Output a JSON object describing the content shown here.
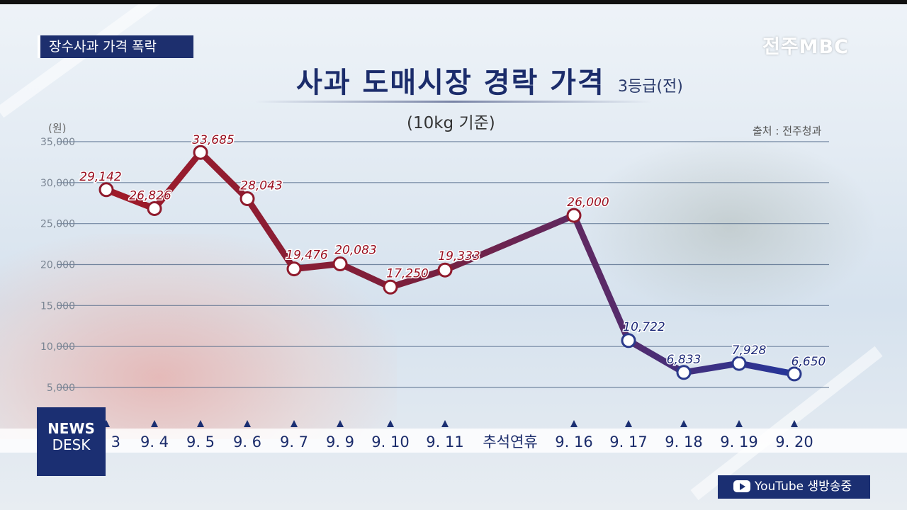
{
  "tag_label": "장수사과 가격 폭락",
  "logo_text": "전주MBC",
  "title": "사과 도매시장 경락 가격",
  "title_suffix": "3등급(전)",
  "subtitle": "(10kg 기준)",
  "source": "출처 : 전주청과",
  "newsdesk": {
    "line1": "NEWS",
    "line2": "DESK"
  },
  "youtube_label": "YouTube 생방송중",
  "colors": {
    "high": "#8f1a2c",
    "low": "#2b3a8c",
    "navy": "#1b2f72"
  },
  "chart_data": {
    "type": "line",
    "title": "사과 도매시장 경락 가격",
    "ylabel": "(원)",
    "ylim": [
      0,
      35000
    ],
    "yticks": [
      5000,
      10000,
      15000,
      20000,
      25000,
      30000,
      35000
    ],
    "ytick_labels": [
      "5,000",
      "10,000",
      "15,000",
      "20,000",
      "25,000",
      "30,000",
      "35,000"
    ],
    "grid": true,
    "categories": [
      "9. 3",
      "9. 4",
      "9. 5",
      "9. 6",
      "9. 7",
      "9. 9",
      "9. 10",
      "9. 11",
      "추석연휴",
      "9. 16",
      "9. 17",
      "9. 18",
      "9. 19",
      "9. 20"
    ],
    "series": [
      {
        "values": [
          29142,
          26826,
          33685,
          28043,
          19476,
          20083,
          17250,
          19333,
          null,
          26000,
          10722,
          6833,
          7928,
          6650
        ],
        "labels": [
          "29,142",
          "26,826",
          "33,685",
          "28,043",
          "19,476",
          "20,083",
          "17,250",
          "19,333",
          "",
          "26,000",
          "10,722",
          "6,833",
          "7,928",
          "6,650"
        ]
      }
    ]
  }
}
